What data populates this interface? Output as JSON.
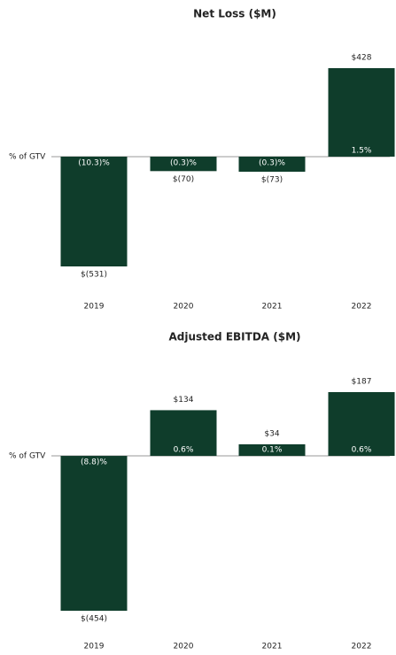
{
  "chart_data": [
    {
      "type": "bar",
      "title": "Net Loss ($M)",
      "baseline_label": "% of GTV",
      "color": "#0f3d2b",
      "categories": [
        "2019",
        "2020",
        "2021",
        "2022"
      ],
      "values": [
        -531,
        -70,
        -73,
        428
      ],
      "value_labels": [
        "$(531)",
        "$(70)",
        "$(73)",
        "$428"
      ],
      "percent_of_gtv": [
        "(10.3)%",
        "(0.3)%",
        "(0.3)%",
        "1.5%"
      ]
    },
    {
      "type": "bar",
      "title": "Adjusted EBITDA ($M)",
      "baseline_label": "% of GTV",
      "color": "#0f3d2b",
      "categories": [
        "2019",
        "2020",
        "2021",
        "2022"
      ],
      "values": [
        -454,
        134,
        34,
        187
      ],
      "value_labels": [
        "$(454)",
        "$134",
        "$34",
        "$187"
      ],
      "percent_of_gtv": [
        "(8.8)%",
        "0.6%",
        "0.1%",
        "0.6%"
      ]
    }
  ]
}
